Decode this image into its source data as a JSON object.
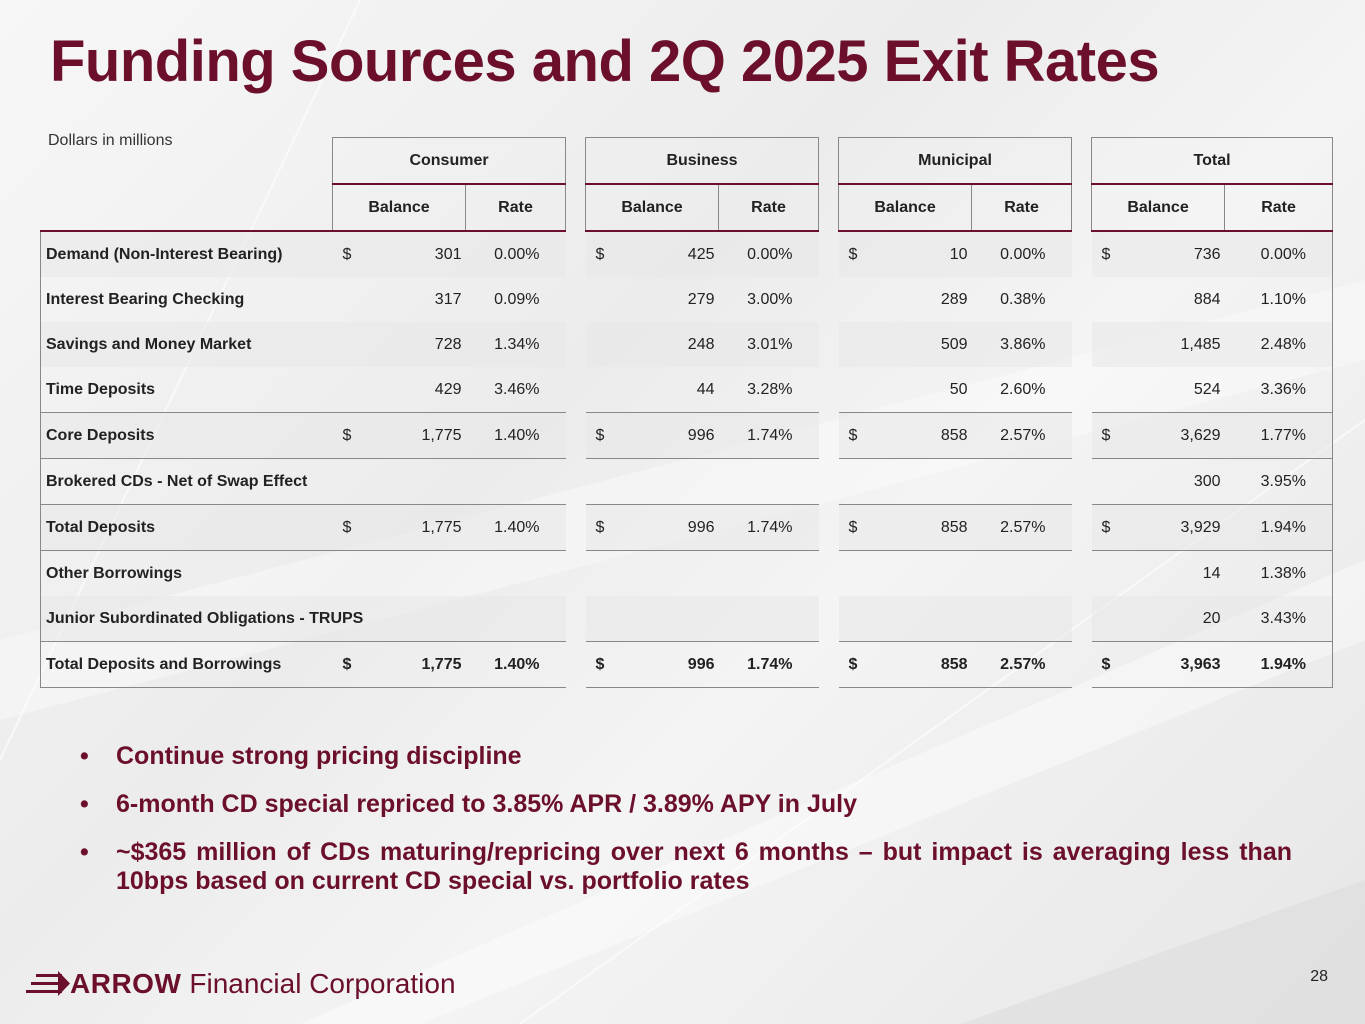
{
  "title": "Funding Sources and 2Q 2025 Exit Rates",
  "units_note": "Dollars in millions",
  "groups": [
    "Consumer",
    "Business",
    "Municipal",
    "Total"
  ],
  "sub_headers": {
    "balance": "Balance",
    "rate": "Rate"
  },
  "rows": [
    {
      "label": "Demand (Non-Interest Bearing)",
      "cells": [
        {
          "d": "$",
          "b": "301",
          "r": "0.00%"
        },
        {
          "d": "$",
          "b": "425",
          "r": "0.00%"
        },
        {
          "d": "$",
          "b": "10",
          "r": "0.00%"
        },
        {
          "d": "$",
          "b": "736",
          "r": "0.00%"
        }
      ]
    },
    {
      "label": "Interest Bearing Checking",
      "cells": [
        {
          "d": "",
          "b": "317",
          "r": "0.09%"
        },
        {
          "d": "",
          "b": "279",
          "r": "3.00%"
        },
        {
          "d": "",
          "b": "289",
          "r": "0.38%"
        },
        {
          "d": "",
          "b": "884",
          "r": "1.10%"
        }
      ]
    },
    {
      "label": "Savings and Money Market",
      "cells": [
        {
          "d": "",
          "b": "728",
          "r": "1.34%"
        },
        {
          "d": "",
          "b": "248",
          "r": "3.01%"
        },
        {
          "d": "",
          "b": "509",
          "r": "3.86%"
        },
        {
          "d": "",
          "b": "1,485",
          "r": "2.48%"
        }
      ]
    },
    {
      "label": "Time Deposits",
      "cells": [
        {
          "d": "",
          "b": "429",
          "r": "3.46%"
        },
        {
          "d": "",
          "b": "44",
          "r": "3.28%"
        },
        {
          "d": "",
          "b": "50",
          "r": "2.60%"
        },
        {
          "d": "",
          "b": "524",
          "r": "3.36%"
        }
      ]
    },
    {
      "label": "Core Deposits",
      "cells": [
        {
          "d": "$",
          "b": "1,775",
          "r": "1.40%"
        },
        {
          "d": "$",
          "b": "996",
          "r": "1.74%"
        },
        {
          "d": "$",
          "b": "858",
          "r": "2.57%"
        },
        {
          "d": "$",
          "b": "3,629",
          "r": "1.77%"
        }
      ]
    },
    {
      "label": "Brokered CDs - Net of Swap Effect",
      "cells": [
        {
          "d": "",
          "b": "",
          "r": ""
        },
        {
          "d": "",
          "b": "",
          "r": ""
        },
        {
          "d": "",
          "b": "",
          "r": ""
        },
        {
          "d": "",
          "b": "300",
          "r": "3.95%"
        }
      ]
    },
    {
      "label": "Total Deposits",
      "cells": [
        {
          "d": "$",
          "b": "1,775",
          "r": "1.40%"
        },
        {
          "d": "$",
          "b": "996",
          "r": "1.74%"
        },
        {
          "d": "$",
          "b": "858",
          "r": "2.57%"
        },
        {
          "d": "$",
          "b": "3,929",
          "r": "1.94%"
        }
      ]
    },
    {
      "label": "Other Borrowings",
      "cells": [
        {
          "d": "",
          "b": "",
          "r": ""
        },
        {
          "d": "",
          "b": "",
          "r": ""
        },
        {
          "d": "",
          "b": "",
          "r": ""
        },
        {
          "d": "",
          "b": "14",
          "r": "1.38%"
        }
      ]
    },
    {
      "label": "Junior Subordinated Obligations - TRUPS",
      "cells": [
        {
          "d": "",
          "b": "",
          "r": ""
        },
        {
          "d": "",
          "b": "",
          "r": ""
        },
        {
          "d": "",
          "b": "",
          "r": ""
        },
        {
          "d": "",
          "b": "20",
          "r": "3.43%"
        }
      ]
    },
    {
      "label": "Total Deposits and Borrowings",
      "cells": [
        {
          "d": "$",
          "b": "1,775",
          "r": "1.40%"
        },
        {
          "d": "$",
          "b": "996",
          "r": "1.74%"
        },
        {
          "d": "$",
          "b": "858",
          "r": "2.57%"
        },
        {
          "d": "$",
          "b": "3,963",
          "r": "1.94%"
        }
      ]
    }
  ],
  "bullets": [
    "Continue strong pricing discipline",
    "6-month CD special repriced to 3.85% APR / 3.89% APY in July",
    "~$365 million of CDs maturing/repricing over next 6 months – but impact is averaging less than 10bps based on current CD special vs. portfolio rates"
  ],
  "bullet_glyph": "•",
  "logo": {
    "brand": "ARROW",
    "rest": "Financial Corporation"
  },
  "page_number": "28",
  "colors": {
    "accent": "#6b0f2a"
  }
}
